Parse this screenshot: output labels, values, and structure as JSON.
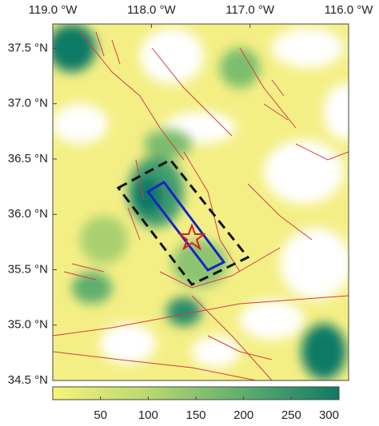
{
  "map": {
    "lonlim": [
      -119,
      -116
    ],
    "latlim": [
      34.5,
      37.72
    ],
    "lon_ticks": [
      {
        "value": -119,
        "label": "119.0 °W"
      },
      {
        "value": -118,
        "label": "118.0 °W"
      },
      {
        "value": -117,
        "label": "117.0 °W"
      },
      {
        "value": -116,
        "label": "116.0 °W"
      }
    ],
    "lat_ticks": [
      {
        "value": 37.5,
        "label": "37.5 °N"
      },
      {
        "value": 37.0,
        "label": "37.0 °N"
      },
      {
        "value": 36.5,
        "label": "36.5 °N"
      },
      {
        "value": 36.0,
        "label": "36.0 °N"
      },
      {
        "value": 35.5,
        "label": "35.5 °N"
      },
      {
        "value": 35.0,
        "label": "35.0 °N"
      },
      {
        "value": 34.5,
        "label": "34.5 °N"
      }
    ],
    "colorbar": {
      "range": [
        0,
        300
      ],
      "ticks": [
        50,
        100,
        150,
        200,
        250,
        300
      ],
      "colors": [
        "#f7f37a",
        "#b9d870",
        "#5fae6e",
        "#0f7a66"
      ]
    }
  }
}
